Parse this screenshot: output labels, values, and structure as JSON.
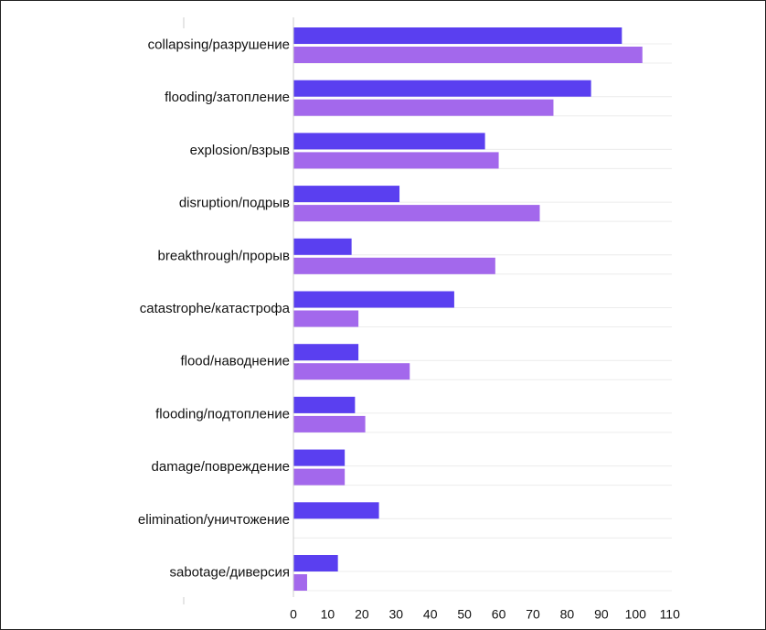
{
  "chart_data": {
    "type": "bar",
    "orientation": "horizontal",
    "categories": [
      "collapsing/разрушение",
      "flooding/затопление",
      "explosion/взрыв",
      "disruption/подрыв",
      "breakthrough/прорыв",
      "catastrophe/катастрофа",
      "flood/наводнение",
      "flooding/подтопление",
      "damage/повреждение",
      "elimination/уничтожение",
      "sabotage/диверсия"
    ],
    "series": [
      {
        "color": "#5a3ff0",
        "values": [
          96,
          87,
          56,
          31,
          17,
          47,
          19,
          18,
          15,
          25,
          13
        ]
      },
      {
        "color": "#a368ec",
        "values": [
          102,
          76,
          60,
          72,
          59,
          19,
          34,
          21,
          15,
          0,
          4
        ]
      }
    ],
    "xticks": [
      0,
      10,
      20,
      30,
      40,
      50,
      60,
      70,
      80,
      90,
      100,
      110
    ],
    "xlim": [
      0,
      110
    ],
    "title": "",
    "xlabel": "",
    "ylabel": "",
    "grid": "horizontal",
    "legend": "none",
    "colors": {
      "grid": "#ececec",
      "axis": "#cccccc",
      "text": "#111111"
    }
  }
}
